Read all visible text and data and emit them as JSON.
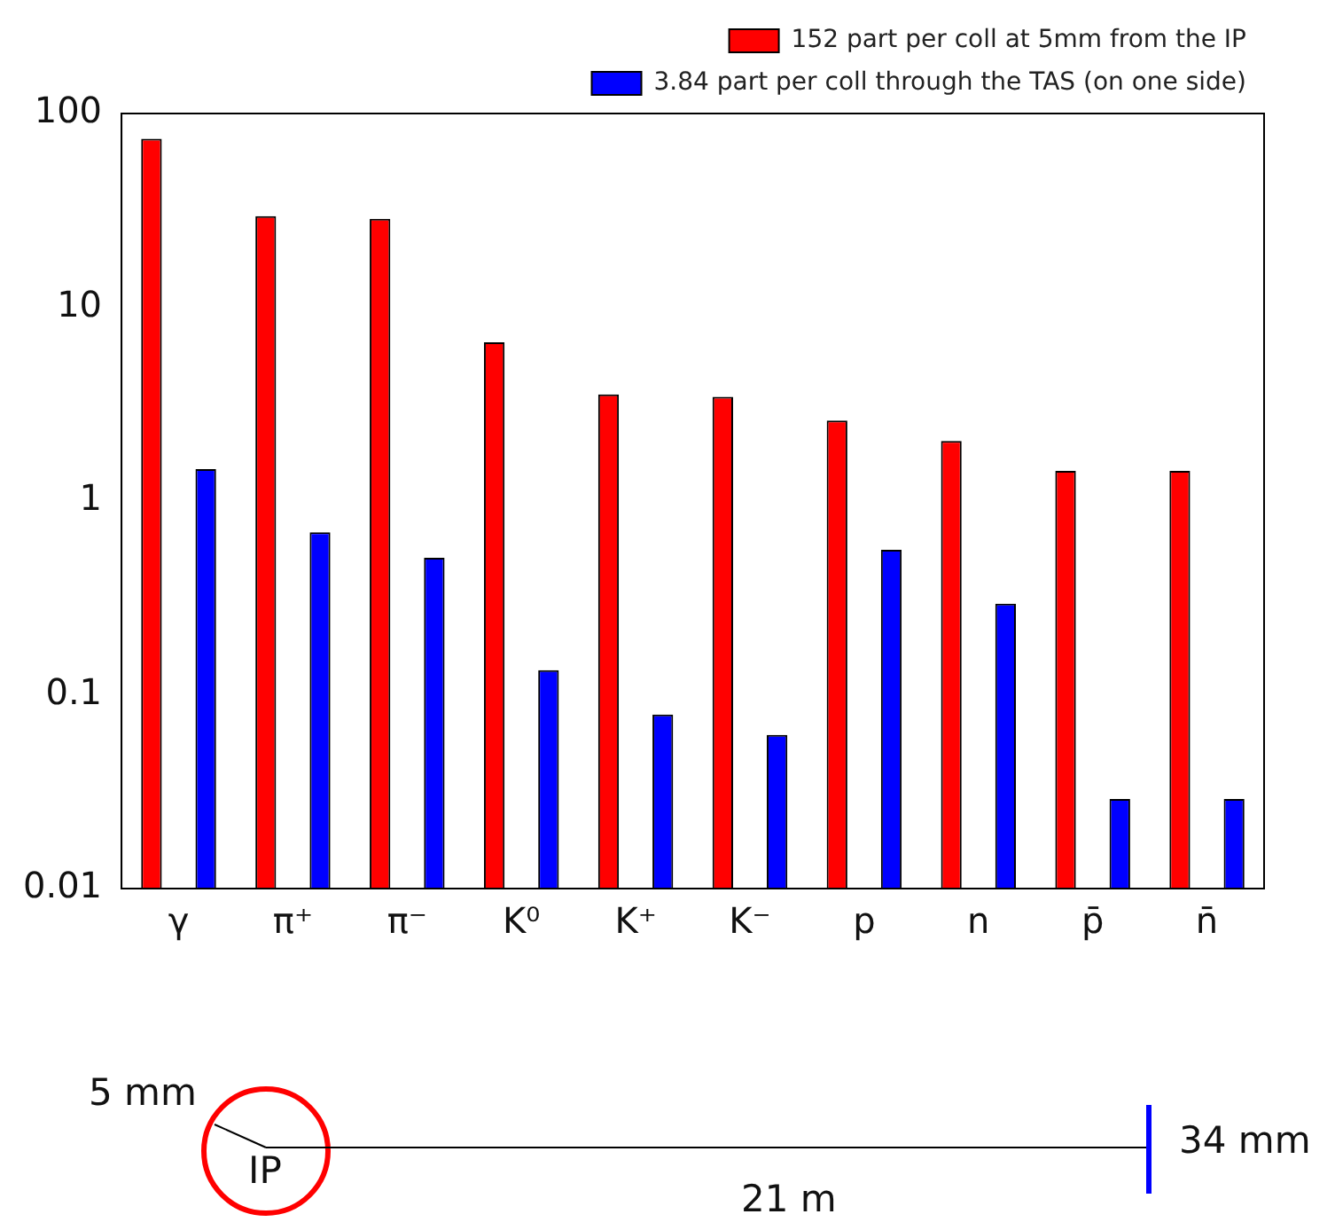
{
  "chart_data": {
    "type": "bar",
    "log": "y",
    "categories": [
      "γ",
      "π⁺",
      "π⁻",
      "K⁰",
      "K⁺",
      "K⁻",
      "p",
      "n",
      "p̄",
      "n̄"
    ],
    "series": [
      {
        "name": "152 part per coll at 5mm from the IP",
        "color": "#ff0000",
        "values": [
          74,
          29.5,
          28.6,
          6.6,
          3.55,
          3.45,
          2.6,
          2.04,
          1.43,
          1.43
        ]
      },
      {
        "name": "3.84 part per coll through the TAS (on one side)",
        "color": "#0000ff",
        "values": [
          1.46,
          0.69,
          0.51,
          0.134,
          0.079,
          0.062,
          0.56,
          0.295,
          0.029,
          0.029
        ]
      }
    ],
    "ylim": [
      0.01,
      100
    ],
    "yticks": [
      0.01,
      0.1,
      1,
      10,
      100
    ],
    "grid": false,
    "legend": "top right",
    "annotations": [
      "5 mm",
      "IP",
      "21 m",
      "34 mm"
    ]
  }
}
